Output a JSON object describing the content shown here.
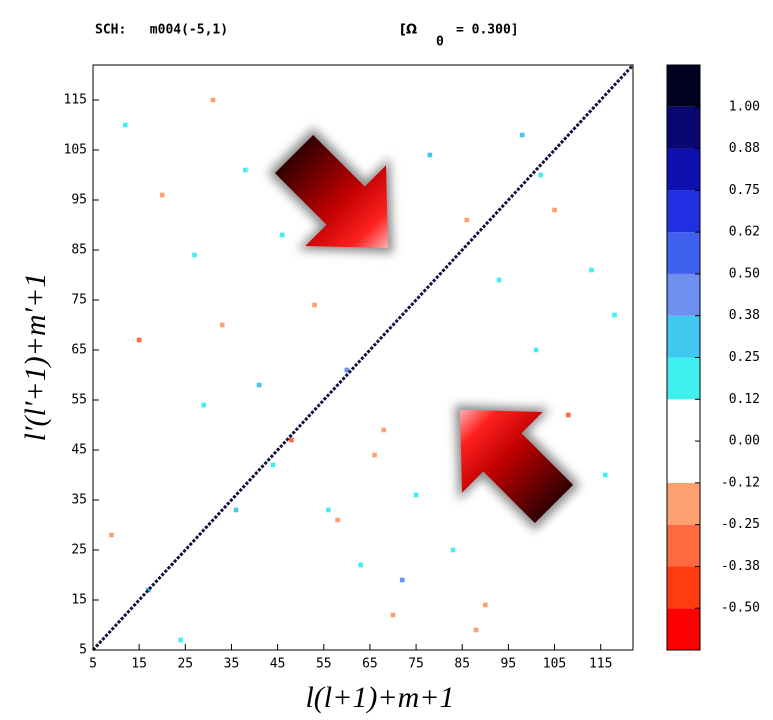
{
  "chart_data": {
    "type": "heatmap",
    "title": "SCH:   m004(-5,1)",
    "omega": "[Ω",
    "omega_sub": "0",
    "omega_value": "= 0.300]",
    "xlabel": "l(l+1)+m+1",
    "ylabel": "l′(l′+1)+m′+1",
    "xlim": [
      5,
      122
    ],
    "ylim": [
      5,
      122
    ],
    "xticks": [
      5,
      15,
      25,
      35,
      45,
      55,
      65,
      75,
      85,
      95,
      105,
      115
    ],
    "yticks": [
      5,
      15,
      25,
      35,
      45,
      55,
      65,
      75,
      85,
      95,
      105,
      115
    ],
    "diagonal": {
      "x": [
        5,
        122
      ],
      "y": [
        5,
        122
      ],
      "color": "#101040"
    },
    "cells": {
      "x": [
        12,
        20,
        27,
        33,
        41,
        48,
        56,
        63,
        70,
        78,
        86,
        93,
        101,
        108,
        116,
        9,
        17,
        24,
        31,
        38,
        46,
        53,
        60,
        68,
        75,
        83,
        90,
        98,
        105,
        113,
        15,
        29,
        44,
        58,
        72,
        88,
        102,
        118,
        36,
        66
      ],
      "y": [
        110,
        96,
        84,
        70,
        58,
        47,
        33,
        22,
        12,
        104,
        91,
        79,
        65,
        52,
        40,
        28,
        17,
        7,
        115,
        101,
        88,
        74,
        61,
        49,
        36,
        25,
        14,
        108,
        93,
        81,
        67,
        54,
        42,
        31,
        19,
        9,
        100,
        72,
        33,
        44
      ],
      "values": [
        0.15,
        -0.2,
        0.18,
        -0.15,
        0.28,
        -0.3,
        0.2,
        0.15,
        -0.18,
        0.32,
        -0.22,
        0.18,
        0.15,
        -0.28,
        0.2,
        -0.15,
        0.3,
        0.18,
        -0.2,
        0.16,
        0.22,
        -0.16,
        0.4,
        -0.25,
        0.18,
        0.15,
        -0.2,
        0.26,
        -0.15,
        0.2,
        -0.3,
        0.16,
        0.18,
        -0.22,
        0.45,
        -0.18,
        0.2,
        0.15,
        0.3,
        -0.16
      ]
    },
    "colorbar": {
      "lim": [
        -0.625,
        1.125
      ],
      "colors": [
        "#ff0000",
        "#ff3b10",
        "#ff6a40",
        "#ffa070",
        "#ffffff",
        "#ffffff",
        "#40f0f0",
        "#40c8f0",
        "#7090f0",
        "#4060f0",
        "#2030e0",
        "#1010b0",
        "#080870",
        "#000020"
      ],
      "ticks": [
        {
          "value": 1.0,
          "label": "1.00"
        },
        {
          "value": 0.875,
          "label": "0.88"
        },
        {
          "value": 0.75,
          "label": "0.75"
        },
        {
          "value": 0.625,
          "label": "0.62"
        },
        {
          "value": 0.5,
          "label": "0.50"
        },
        {
          "value": 0.375,
          "label": "0.38"
        },
        {
          "value": 0.25,
          "label": "0.25"
        },
        {
          "value": 0.125,
          "label": "0.12"
        },
        {
          "value": 0,
          "label": "0.00"
        },
        {
          "value": -0.125,
          "label": "-0.12"
        },
        {
          "value": -0.25,
          "label": "-0.25"
        },
        {
          "value": -0.375,
          "label": "-0.38"
        },
        {
          "value": -0.5,
          "label": "-0.50"
        }
      ]
    }
  }
}
